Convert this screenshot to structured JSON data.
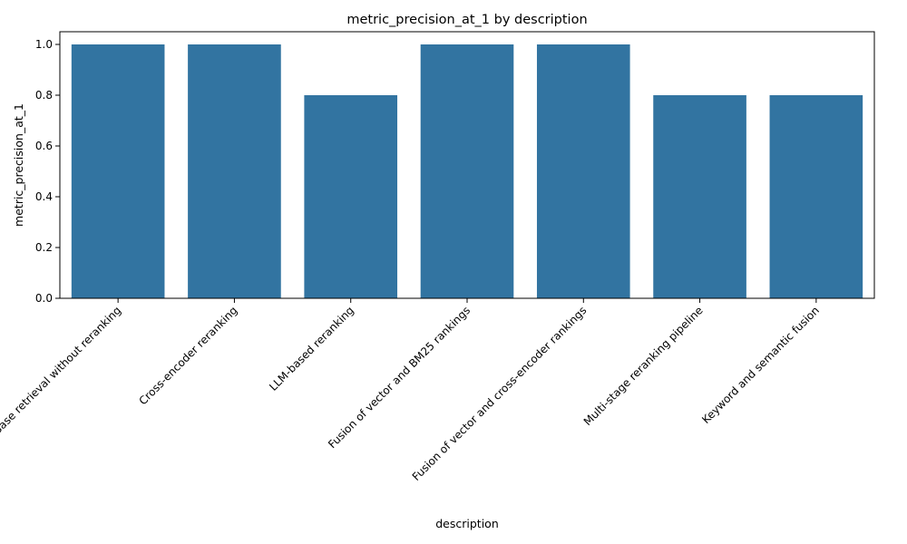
{
  "chart_data": {
    "type": "bar",
    "title": "metric_precision_at_1 by description",
    "xlabel": "description",
    "ylabel": "metric_precision_at_1",
    "categories": [
      "Base retrieval without reranking",
      "Cross-encoder reranking",
      "LLM-based reranking",
      "Fusion of vector and BM25 rankings",
      "Fusion of vector and cross-encoder rankings",
      "Multi-stage reranking pipeline",
      "Keyword and semantic fusion"
    ],
    "values": [
      1.0,
      1.0,
      0.8,
      1.0,
      1.0,
      0.8,
      0.8
    ],
    "ylim": [
      0,
      1.05
    ],
    "yticks": [
      "0.0",
      "0.2",
      "0.4",
      "0.6",
      "0.8",
      "1.0"
    ],
    "grid": false,
    "bar_color": "#3274a1"
  }
}
